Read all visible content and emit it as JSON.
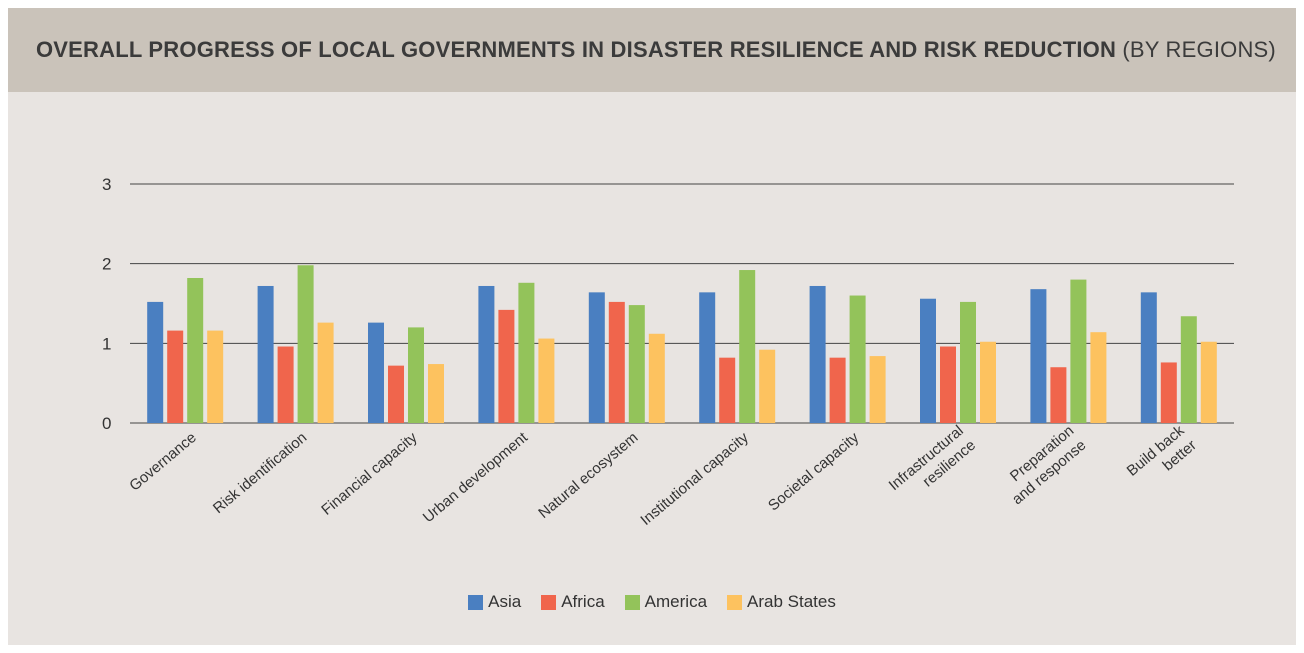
{
  "header": {
    "title_bold": "OVERALL PROGRESS OF LOCAL GOVERNMENTS IN DISASTER RESILIENCE AND RISK REDUCTION",
    "title_light": "(BY REGIONS)"
  },
  "colors": {
    "Asia": "#4a7fc1",
    "Africa": "#f0654c",
    "America": "#93c35a",
    "Arab States": "#fdc25f",
    "header_bg": "#cac3ba",
    "panel_bg": "#e8e4e1"
  },
  "chart_data": {
    "type": "bar",
    "title": "OVERALL PROGRESS OF LOCAL GOVERNMENTS IN DISASTER RESILIENCE AND RISK REDUCTION (BY REGIONS)",
    "xlabel": "",
    "ylabel": "",
    "ylim": [
      0,
      3
    ],
    "yticks": [
      0,
      1,
      2,
      3
    ],
    "grid": true,
    "legend_position": "bottom",
    "categories": [
      [
        "Governance"
      ],
      [
        "Risk identification"
      ],
      [
        "Financial capacity"
      ],
      [
        "Urban development"
      ],
      [
        "Natural ecosystem"
      ],
      [
        "Institutional capacity"
      ],
      [
        "Societal capacity"
      ],
      [
        "Infrastructural",
        "resilience"
      ],
      [
        "Preparation",
        "and response"
      ],
      [
        "Build back",
        "better"
      ]
    ],
    "series": [
      {
        "name": "Asia",
        "values": [
          1.52,
          1.72,
          1.26,
          1.72,
          1.64,
          1.64,
          1.72,
          1.56,
          1.68,
          1.64
        ]
      },
      {
        "name": "Africa",
        "values": [
          1.16,
          0.96,
          0.72,
          1.42,
          1.52,
          0.82,
          0.82,
          0.96,
          0.7,
          0.76
        ]
      },
      {
        "name": "America",
        "values": [
          1.82,
          1.98,
          1.2,
          1.76,
          1.48,
          1.92,
          1.6,
          1.52,
          1.8,
          1.34
        ]
      },
      {
        "name": "Arab States",
        "values": [
          1.16,
          1.26,
          0.74,
          1.06,
          1.12,
          0.92,
          0.84,
          1.02,
          1.14,
          1.02
        ]
      }
    ]
  }
}
